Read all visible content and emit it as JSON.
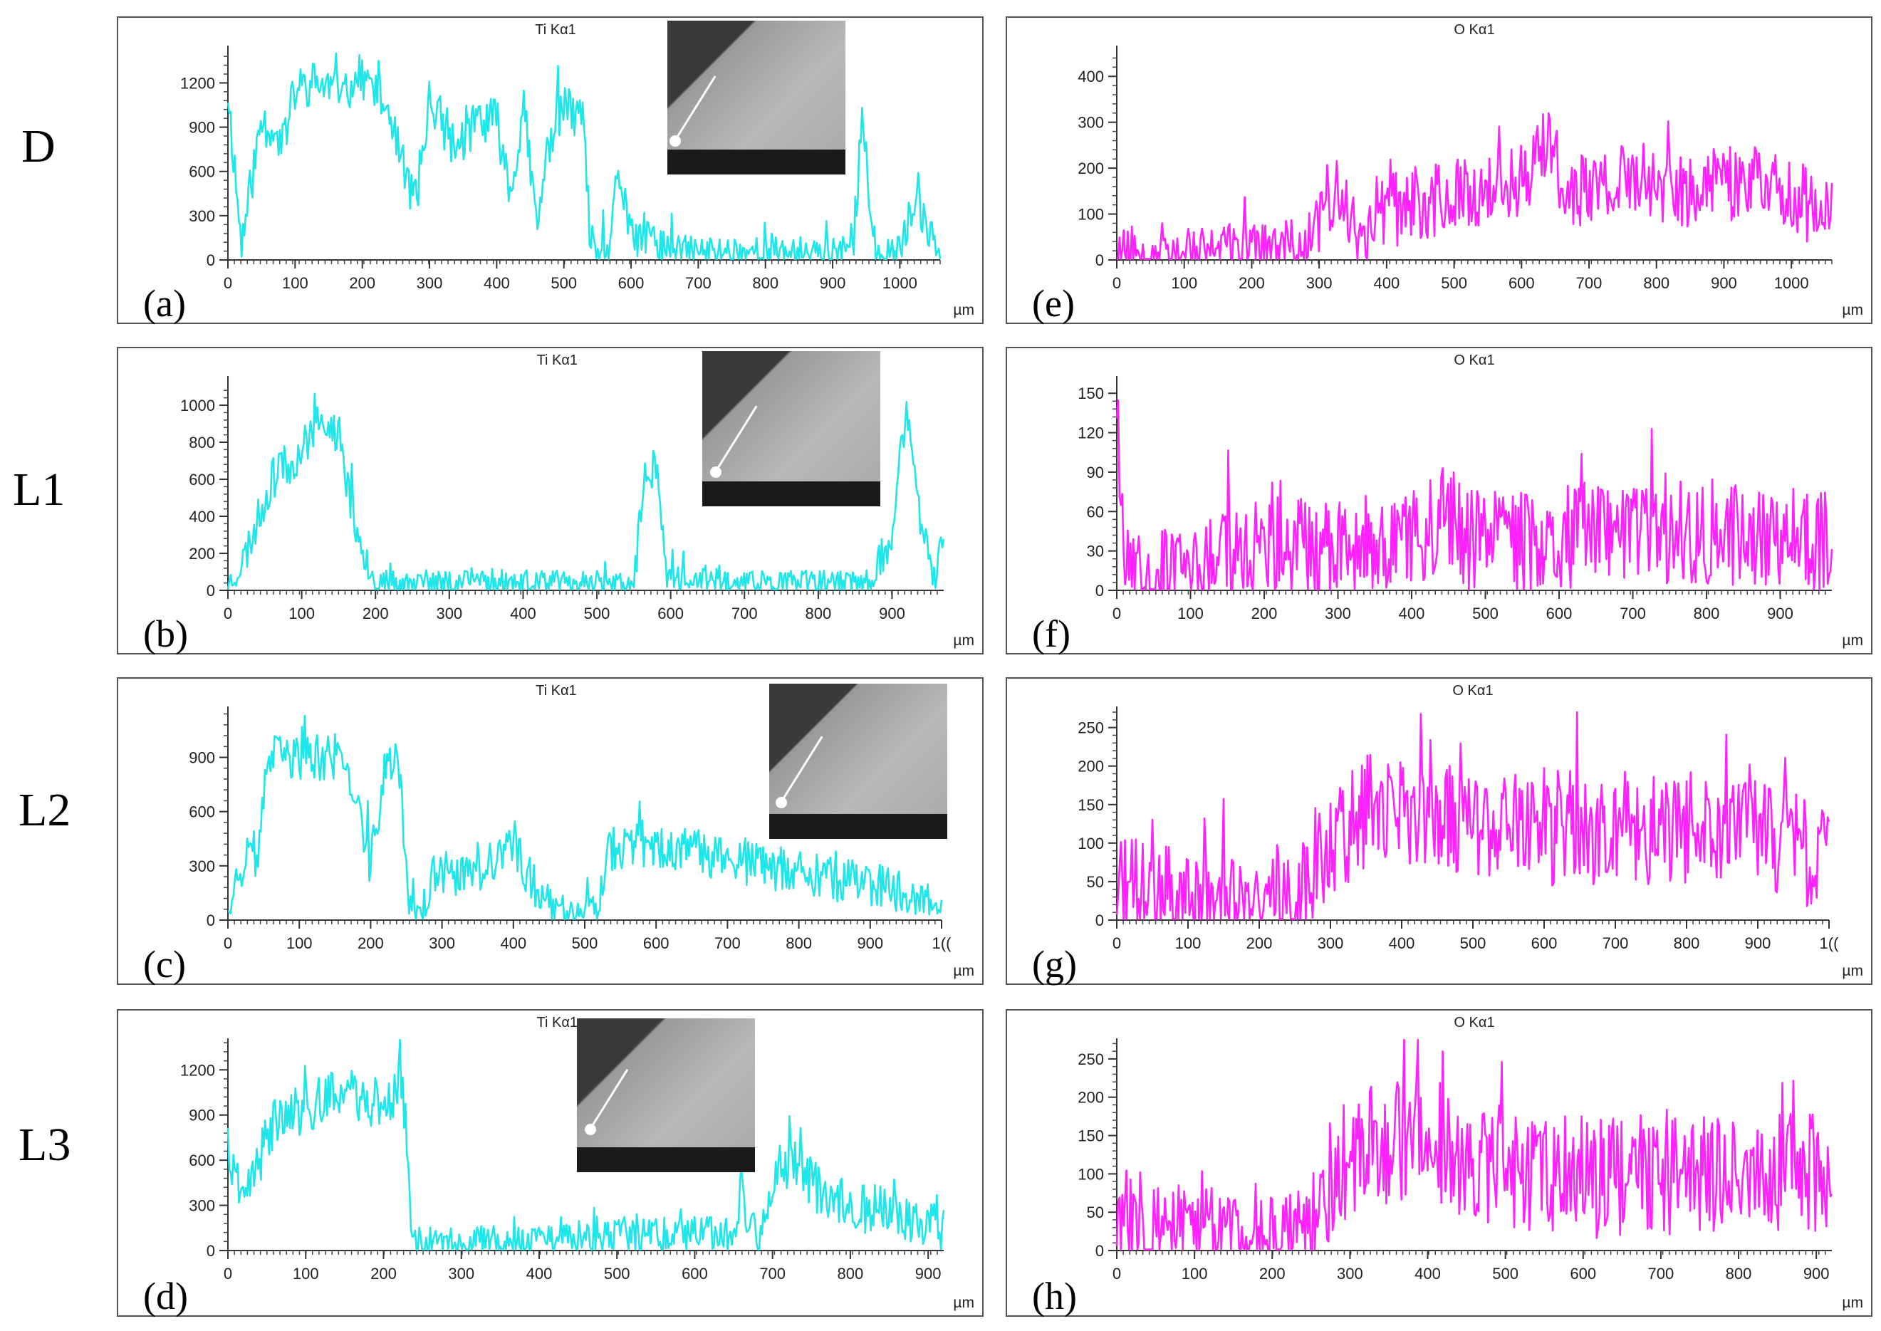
{
  "row_labels": [
    "D",
    "L1",
    "L2",
    "L3"
  ],
  "colors": {
    "ti": "#1fe6e8",
    "o": "#ff22ff",
    "frame": "#555555",
    "axis": "#333333"
  },
  "unit_label": "µm",
  "chart_data": [
    {
      "type": "line",
      "id": "a",
      "panel_label": "(a)",
      "title": "Ti Kα1",
      "element": "Ti",
      "xmax": 1060,
      "xticks": [
        0,
        100,
        200,
        300,
        400,
        500,
        600,
        700,
        800,
        900,
        1000
      ],
      "yticks": [
        0,
        300,
        600,
        900,
        1200
      ],
      "ylim": [
        0,
        1400
      ],
      "has_inset": true,
      "series_profile": [
        [
          0,
          1150
        ],
        [
          20,
          100
        ],
        [
          50,
          950
        ],
        [
          80,
          800
        ],
        [
          100,
          1150
        ],
        [
          130,
          1200
        ],
        [
          170,
          1150
        ],
        [
          200,
          1250
        ],
        [
          240,
          1000
        ],
        [
          260,
          600
        ],
        [
          280,
          400
        ],
        [
          300,
          1100
        ],
        [
          340,
          750
        ],
        [
          370,
          950
        ],
        [
          400,
          950
        ],
        [
          420,
          450
        ],
        [
          440,
          1050
        ],
        [
          460,
          200
        ],
        [
          480,
          850
        ],
        [
          500,
          1050
        ],
        [
          530,
          900
        ],
        [
          540,
          50
        ],
        [
          570,
          60
        ],
        [
          580,
          650
        ],
        [
          600,
          150
        ],
        [
          620,
          150
        ],
        [
          680,
          60
        ],
        [
          800,
          60
        ],
        [
          900,
          60
        ],
        [
          930,
          50
        ],
        [
          945,
          1050
        ],
        [
          960,
          60
        ],
        [
          1000,
          60
        ],
        [
          1020,
          350
        ],
        [
          1040,
          250
        ],
        [
          1060,
          100
        ]
      ],
      "noise": 160,
      "seed": 11
    },
    {
      "type": "line",
      "id": "b",
      "panel_label": "(b)",
      "title": "Ti Kα1",
      "element": "Ti",
      "xmax": 970,
      "xticks": [
        0,
        100,
        200,
        300,
        400,
        500,
        600,
        700,
        800,
        900
      ],
      "yticks": [
        0,
        200,
        400,
        600,
        800,
        1000
      ],
      "ylim": [
        0,
        1100
      ],
      "has_inset": true,
      "series_profile": [
        [
          0,
          30
        ],
        [
          20,
          150
        ],
        [
          60,
          600
        ],
        [
          90,
          700
        ],
        [
          120,
          900
        ],
        [
          150,
          850
        ],
        [
          170,
          400
        ],
        [
          190,
          150
        ],
        [
          200,
          40
        ],
        [
          300,
          40
        ],
        [
          340,
          60
        ],
        [
          400,
          40
        ],
        [
          500,
          40
        ],
        [
          550,
          30
        ],
        [
          565,
          600
        ],
        [
          580,
          700
        ],
        [
          595,
          60
        ],
        [
          700,
          40
        ],
        [
          870,
          40
        ],
        [
          900,
          300
        ],
        [
          920,
          1000
        ],
        [
          940,
          300
        ],
        [
          960,
          40
        ],
        [
          970,
          350
        ]
      ],
      "noise": 110,
      "seed": 23
    },
    {
      "type": "line",
      "id": "c",
      "panel_label": "(c)",
      "title": "Ti Kα1",
      "element": "Ti",
      "xmax": 1000,
      "xticks": [
        0,
        100,
        200,
        300,
        400,
        500,
        600,
        700,
        800,
        900,
        "1(("
      ],
      "yticks": [
        0,
        300,
        600,
        900
      ],
      "ylim": [
        0,
        1150
      ],
      "has_inset": true,
      "series_profile": [
        [
          0,
          100
        ],
        [
          20,
          300
        ],
        [
          45,
          400
        ],
        [
          55,
          900
        ],
        [
          100,
          900
        ],
        [
          160,
          900
        ],
        [
          180,
          700
        ],
        [
          200,
          300
        ],
        [
          220,
          850
        ],
        [
          240,
          850
        ],
        [
          255,
          50
        ],
        [
          270,
          50
        ],
        [
          290,
          250
        ],
        [
          350,
          250
        ],
        [
          400,
          400
        ],
        [
          430,
          200
        ],
        [
          460,
          60
        ],
        [
          520,
          60
        ],
        [
          530,
          400
        ],
        [
          600,
          400
        ],
        [
          700,
          350
        ],
        [
          800,
          250
        ],
        [
          900,
          200
        ],
        [
          1000,
          100
        ]
      ],
      "noise": 130,
      "seed": 37
    },
    {
      "type": "line",
      "id": "d",
      "panel_label": "(d)",
      "title": "Ti Kα1",
      "element": "Ti",
      "xmax": 920,
      "xticks": [
        0,
        100,
        200,
        300,
        400,
        500,
        600,
        700,
        800,
        900
      ],
      "yticks": [
        0,
        300,
        600,
        900,
        1200
      ],
      "ylim": [
        0,
        1400
      ],
      "has_inset": true,
      "series_profile": [
        [
          0,
          700
        ],
        [
          15,
          250
        ],
        [
          40,
          600
        ],
        [
          60,
          850
        ],
        [
          100,
          950
        ],
        [
          150,
          1050
        ],
        [
          200,
          950
        ],
        [
          225,
          1100
        ],
        [
          235,
          200
        ],
        [
          245,
          50
        ],
        [
          300,
          50
        ],
        [
          400,
          60
        ],
        [
          500,
          100
        ],
        [
          600,
          100
        ],
        [
          650,
          100
        ],
        [
          660,
          400
        ],
        [
          680,
          50
        ],
        [
          700,
          350
        ],
        [
          720,
          600
        ],
        [
          760,
          400
        ],
        [
          800,
          300
        ],
        [
          850,
          250
        ],
        [
          900,
          150
        ],
        [
          920,
          150
        ]
      ],
      "noise": 170,
      "seed": 41
    },
    {
      "type": "line",
      "id": "e",
      "panel_label": "(e)",
      "title": "O Kα1",
      "element": "O",
      "xmax": 1060,
      "xticks": [
        0,
        100,
        200,
        300,
        400,
        500,
        600,
        700,
        800,
        900,
        1000
      ],
      "yticks": [
        0,
        100,
        200,
        300,
        400
      ],
      "ylim": [
        0,
        450
      ],
      "has_inset": false,
      "series_profile": [
        [
          0,
          25
        ],
        [
          100,
          20
        ],
        [
          200,
          20
        ],
        [
          280,
          30
        ],
        [
          310,
          130
        ],
        [
          340,
          150
        ],
        [
          360,
          30
        ],
        [
          380,
          100
        ],
        [
          450,
          120
        ],
        [
          500,
          140
        ],
        [
          550,
          160
        ],
        [
          600,
          180
        ],
        [
          640,
          250
        ],
        [
          660,
          170
        ],
        [
          700,
          150
        ],
        [
          760,
          170
        ],
        [
          800,
          170
        ],
        [
          850,
          150
        ],
        [
          900,
          160
        ],
        [
          950,
          180
        ],
        [
          1000,
          140
        ],
        [
          1040,
          110
        ],
        [
          1060,
          90
        ]
      ],
      "noise": 85,
      "seed": 53
    },
    {
      "type": "line",
      "id": "f",
      "panel_label": "(f)",
      "title": "O Kα1",
      "element": "O",
      "xmax": 970,
      "xticks": [
        0,
        100,
        200,
        300,
        400,
        500,
        600,
        700,
        800,
        900
      ],
      "yticks": [
        0,
        30,
        60,
        90,
        120,
        150
      ],
      "ylim": [
        0,
        155
      ],
      "has_inset": false,
      "series_profile": [
        [
          0,
          150
        ],
        [
          8,
          60
        ],
        [
          15,
          15
        ],
        [
          100,
          15
        ],
        [
          160,
          25
        ],
        [
          200,
          30
        ],
        [
          300,
          35
        ],
        [
          400,
          40
        ],
        [
          450,
          60
        ],
        [
          470,
          40
        ],
        [
          550,
          35
        ],
        [
          600,
          40
        ],
        [
          700,
          40
        ],
        [
          800,
          45
        ],
        [
          900,
          40
        ],
        [
          970,
          35
        ]
      ],
      "noise": 40,
      "seed": 67
    },
    {
      "type": "line",
      "id": "g",
      "panel_label": "(g)",
      "title": "O Kα1",
      "element": "O",
      "xmax": 1000,
      "xticks": [
        0,
        100,
        200,
        300,
        400,
        500,
        600,
        700,
        800,
        900,
        "1(("
      ],
      "yticks": [
        0,
        50,
        100,
        150,
        200,
        250
      ],
      "ylim": [
        0,
        270
      ],
      "has_inset": false,
      "series_profile": [
        [
          0,
          40
        ],
        [
          100,
          30
        ],
        [
          200,
          20
        ],
        [
          250,
          40
        ],
        [
          300,
          100
        ],
        [
          350,
          140
        ],
        [
          400,
          150
        ],
        [
          450,
          130
        ],
        [
          500,
          120
        ],
        [
          600,
          120
        ],
        [
          700,
          120
        ],
        [
          800,
          120
        ],
        [
          900,
          110
        ],
        [
          1000,
          80
        ]
      ],
      "noise": 75,
      "seed": 71
    },
    {
      "type": "line",
      "id": "h",
      "panel_label": "(h)",
      "title": "O Kα1",
      "element": "O",
      "xmax": 920,
      "xticks": [
        0,
        100,
        200,
        300,
        400,
        500,
        600,
        700,
        800,
        900
      ],
      "yticks": [
        0,
        50,
        100,
        150,
        200,
        250
      ],
      "ylim": [
        0,
        275
      ],
      "has_inset": false,
      "series_profile": [
        [
          0,
          40
        ],
        [
          100,
          25
        ],
        [
          200,
          25
        ],
        [
          260,
          40
        ],
        [
          275,
          90
        ],
        [
          300,
          130
        ],
        [
          350,
          140
        ],
        [
          400,
          150
        ],
        [
          450,
          120
        ],
        [
          500,
          110
        ],
        [
          600,
          95
        ],
        [
          700,
          100
        ],
        [
          800,
          100
        ],
        [
          900,
          105
        ],
        [
          920,
          100
        ]
      ],
      "noise": 80,
      "seed": 83
    }
  ]
}
